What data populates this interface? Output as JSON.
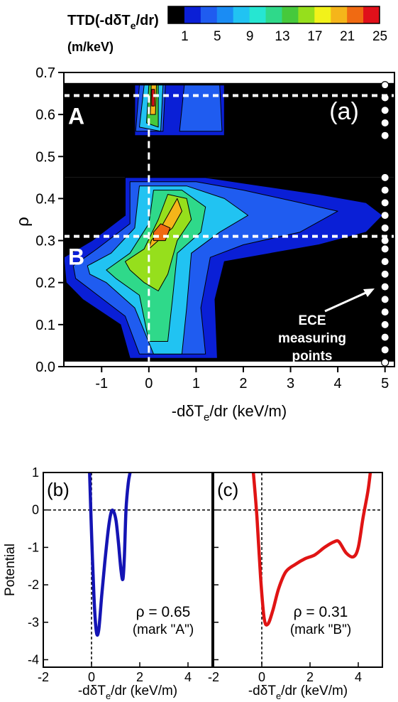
{
  "chart_data": [
    {
      "panel": "a",
      "type": "heatmap",
      "panel_label": "(a)",
      "xlabel_main": "-dδT",
      "xlabel_sub": "e",
      "xlabel_tail": "/dr (keV/m)",
      "ylabel": "ρ",
      "xlim": [
        -1.8,
        5.2
      ],
      "ylim": [
        0.0,
        0.7
      ],
      "x_ticks": [
        -1,
        0,
        1,
        2,
        3,
        4,
        5
      ],
      "x_tick_labels": [
        "-1",
        "0",
        "1",
        "2",
        "3",
        "4",
        "5"
      ],
      "y_ticks": [
        0.0,
        0.1,
        0.2,
        0.3,
        0.4,
        0.5,
        0.6,
        0.7
      ],
      "y_tick_labels": [
        "0.0",
        "0.1",
        "0.2",
        "0.3",
        "0.4",
        "0.5",
        "0.6",
        "0.7"
      ],
      "colorbar": {
        "title_main": "TTD(-dδT",
        "title_sub": "e",
        "title_tail": "/dr)",
        "unit": "(m/keV)",
        "levels": [
          1,
          3,
          5,
          7,
          9,
          11,
          13,
          15,
          17,
          19,
          21,
          23,
          25
        ],
        "tick_values": [
          1,
          5,
          9,
          13,
          17,
          21,
          25
        ],
        "tick_labels": [
          "1",
          "5",
          "9",
          "13",
          "17",
          "21",
          "25"
        ],
        "colors": [
          "#000000",
          "#0a1fd6",
          "#1f5cf0",
          "#1a8cf4",
          "#21c3f2",
          "#26e6d2",
          "#2fd98a",
          "#46c93c",
          "#96df1c",
          "#f2f21a",
          "#f5b51a",
          "#f06a12",
          "#e0101a"
        ]
      },
      "marks": [
        {
          "label": "A",
          "rho": 0.645
        },
        {
          "label": "B",
          "rho": 0.31
        }
      ],
      "zero_line_x": 0,
      "annotation": [
        "ECE",
        "measuring",
        "points"
      ],
      "ece_points_x": 5.0,
      "ece_points_rho": [
        0.01,
        0.04,
        0.07,
        0.1,
        0.13,
        0.16,
        0.19,
        0.22,
        0.25,
        0.28,
        0.3,
        0.33,
        0.36,
        0.39,
        0.42,
        0.45,
        0.55,
        0.58,
        0.61,
        0.64,
        0.67
      ],
      "blobs": [
        {
          "region": "upper",
          "level": 1,
          "points": [
            [
              -0.3,
              0.55
            ],
            [
              1.6,
              0.55
            ],
            [
              1.6,
              0.67
            ],
            [
              -0.3,
              0.67
            ]
          ]
        },
        {
          "region": "upper",
          "level": 2,
          "points": [
            [
              -0.28,
              0.56
            ],
            [
              0.3,
              0.56
            ],
            [
              0.35,
              0.67
            ],
            [
              -0.2,
              0.67
            ]
          ]
        },
        {
          "region": "upper",
          "level": 2,
          "points": [
            [
              0.65,
              0.56
            ],
            [
              1.55,
              0.56
            ],
            [
              1.5,
              0.67
            ],
            [
              0.75,
              0.67
            ]
          ]
        },
        {
          "region": "upper",
          "level": 4,
          "points": [
            [
              -0.2,
              0.57
            ],
            [
              0.25,
              0.56
            ],
            [
              0.3,
              0.67
            ],
            [
              -0.1,
              0.67
            ]
          ]
        },
        {
          "region": "upper",
          "level": 7,
          "points": [
            [
              -0.05,
              0.58
            ],
            [
              0.2,
              0.57
            ],
            [
              0.2,
              0.67
            ],
            [
              0.0,
              0.67
            ]
          ]
        },
        {
          "region": "upper",
          "level": 10,
          "points": [
            [
              0.03,
              0.6
            ],
            [
              0.14,
              0.6
            ],
            [
              0.16,
              0.67
            ],
            [
              0.05,
              0.67
            ]
          ]
        },
        {
          "region": "upper",
          "level": 12,
          "points": [
            [
              0.06,
              0.62
            ],
            [
              0.12,
              0.62
            ],
            [
              0.12,
              0.66
            ],
            [
              0.06,
              0.66
            ]
          ]
        },
        {
          "region": "lower",
          "level": 1,
          "points": [
            [
              -1.8,
              0.26
            ],
            [
              -1.2,
              0.3
            ],
            [
              -0.5,
              0.36
            ],
            [
              -0.5,
              0.45
            ],
            [
              1.2,
              0.45
            ],
            [
              2.4,
              0.43
            ],
            [
              3.6,
              0.41
            ],
            [
              4.6,
              0.39
            ],
            [
              4.95,
              0.36
            ],
            [
              4.6,
              0.32
            ],
            [
              3.6,
              0.29
            ],
            [
              2.6,
              0.27
            ],
            [
              1.6,
              0.25
            ],
            [
              1.4,
              0.16
            ],
            [
              1.45,
              0.02
            ],
            [
              -0.4,
              0.02
            ],
            [
              -0.6,
              0.1
            ],
            [
              -1.4,
              0.16
            ],
            [
              -1.75,
              0.2
            ]
          ]
        },
        {
          "region": "lower",
          "level": 2,
          "points": [
            [
              -1.6,
              0.24
            ],
            [
              -1.1,
              0.28
            ],
            [
              -0.4,
              0.34
            ],
            [
              -0.4,
              0.44
            ],
            [
              1.0,
              0.44
            ],
            [
              2.0,
              0.42
            ],
            [
              3.2,
              0.39
            ],
            [
              4.0,
              0.37
            ],
            [
              3.2,
              0.32
            ],
            [
              2.0,
              0.29
            ],
            [
              1.3,
              0.26
            ],
            [
              1.1,
              0.14
            ],
            [
              1.2,
              0.03
            ],
            [
              -0.2,
              0.03
            ],
            [
              -0.5,
              0.12
            ],
            [
              -1.2,
              0.18
            ],
            [
              -1.55,
              0.21
            ]
          ]
        },
        {
          "region": "lower",
          "level": 4,
          "points": [
            [
              -1.3,
              0.24
            ],
            [
              -0.8,
              0.27
            ],
            [
              -0.3,
              0.33
            ],
            [
              -0.2,
              0.43
            ],
            [
              0.8,
              0.43
            ],
            [
              1.6,
              0.4
            ],
            [
              2.1,
              0.36
            ],
            [
              1.5,
              0.32
            ],
            [
              0.9,
              0.27
            ],
            [
              0.8,
              0.14
            ],
            [
              0.7,
              0.03
            ],
            [
              0.1,
              0.03
            ],
            [
              -0.3,
              0.14
            ],
            [
              -0.9,
              0.2
            ],
            [
              -1.25,
              0.22
            ]
          ]
        },
        {
          "region": "lower",
          "level": 6,
          "points": [
            [
              -0.9,
              0.23
            ],
            [
              -0.4,
              0.27
            ],
            [
              0.0,
              0.34
            ],
            [
              0.1,
              0.42
            ],
            [
              0.7,
              0.42
            ],
            [
              1.2,
              0.38
            ],
            [
              1.1,
              0.32
            ],
            [
              0.6,
              0.27
            ],
            [
              0.5,
              0.16
            ],
            [
              0.4,
              0.06
            ],
            [
              0.0,
              0.06
            ],
            [
              -0.2,
              0.17
            ],
            [
              -0.7,
              0.21
            ]
          ]
        },
        {
          "region": "lower",
          "level": 8,
          "points": [
            [
              -0.5,
              0.25
            ],
            [
              -0.1,
              0.28
            ],
            [
              0.2,
              0.35
            ],
            [
              0.4,
              0.41
            ],
            [
              0.8,
              0.4
            ],
            [
              0.9,
              0.35
            ],
            [
              0.6,
              0.3
            ],
            [
              0.4,
              0.22
            ],
            [
              0.2,
              0.18
            ],
            [
              -0.1,
              0.2
            ],
            [
              -0.4,
              0.23
            ]
          ]
        },
        {
          "region": "lower",
          "level": 10,
          "points": [
            [
              0.0,
              0.28
            ],
            [
              0.2,
              0.3
            ],
            [
              0.5,
              0.33
            ],
            [
              0.7,
              0.37
            ],
            [
              0.6,
              0.4
            ],
            [
              0.4,
              0.36
            ],
            [
              0.2,
              0.32
            ],
            [
              0.05,
              0.3
            ]
          ]
        },
        {
          "region": "lower",
          "level": 11,
          "points": [
            [
              0.1,
              0.3
            ],
            [
              0.35,
              0.3
            ],
            [
              0.45,
              0.33
            ],
            [
              0.25,
              0.34
            ],
            [
              0.1,
              0.32
            ]
          ]
        }
      ]
    },
    {
      "panel": "b",
      "type": "line",
      "panel_label": "(b)",
      "ylabel": "Potential",
      "xlabel_main": "-dδT",
      "xlabel_sub": "e",
      "xlabel_tail": "/dr (keV/m)",
      "xlim": [
        -2,
        5
      ],
      "ylim": [
        -4.2,
        1.0
      ],
      "x_ticks": [
        -2,
        0,
        2,
        4
      ],
      "x_tick_labels": [
        "-2",
        "0",
        "2",
        "4"
      ],
      "y_ticks": [
        1,
        0,
        -1,
        -2,
        -3,
        -4
      ],
      "y_tick_labels": [
        "1",
        "0",
        "-1",
        "-2",
        "-3",
        "-4"
      ],
      "color": "#1414b4",
      "annotation": [
        "ρ = 0.65",
        "(mark \"A\")"
      ],
      "x": [
        -0.08,
        0.0,
        0.1,
        0.2,
        0.3,
        0.42,
        0.55,
        0.7,
        0.82,
        0.92,
        1.02,
        1.12,
        1.22,
        1.3,
        1.36,
        1.43,
        1.52,
        1.6
      ],
      "y": [
        1.0,
        -0.6,
        -2.3,
        -3.25,
        -3.2,
        -2.3,
        -1.4,
        -0.5,
        -0.05,
        -0.05,
        -0.3,
        -0.9,
        -1.6,
        -1.85,
        -1.3,
        0.0,
        0.7,
        1.0
      ]
    },
    {
      "panel": "c",
      "type": "line",
      "panel_label": "(c)",
      "xlabel_main": "-dδT",
      "xlabel_sub": "e",
      "xlabel_tail": "/dr (keV/m)",
      "xlim": [
        -2,
        5
      ],
      "ylim": [
        -4.2,
        1.0
      ],
      "x_ticks": [
        -2,
        0,
        2,
        4
      ],
      "x_tick_labels": [
        "-2",
        "0",
        "2",
        "4"
      ],
      "y_ticks": [
        1,
        0,
        -1,
        -2,
        -3,
        -4
      ],
      "y_tick_labels": [],
      "color": "#e01414",
      "annotation": [
        "ρ = 0.31",
        "(mark \"B\")"
      ],
      "x": [
        -0.35,
        -0.2,
        -0.05,
        0.1,
        0.25,
        0.45,
        0.7,
        1.0,
        1.4,
        1.8,
        2.2,
        2.6,
        3.0,
        3.2,
        3.5,
        3.8,
        4.0,
        4.2,
        4.4,
        4.5
      ],
      "y": [
        1.0,
        -0.2,
        -1.8,
        -2.9,
        -3.05,
        -2.7,
        -2.1,
        -1.65,
        -1.45,
        -1.3,
        -1.2,
        -1.0,
        -0.85,
        -0.85,
        -1.15,
        -1.25,
        -1.0,
        -0.2,
        0.5,
        1.0
      ]
    }
  ]
}
